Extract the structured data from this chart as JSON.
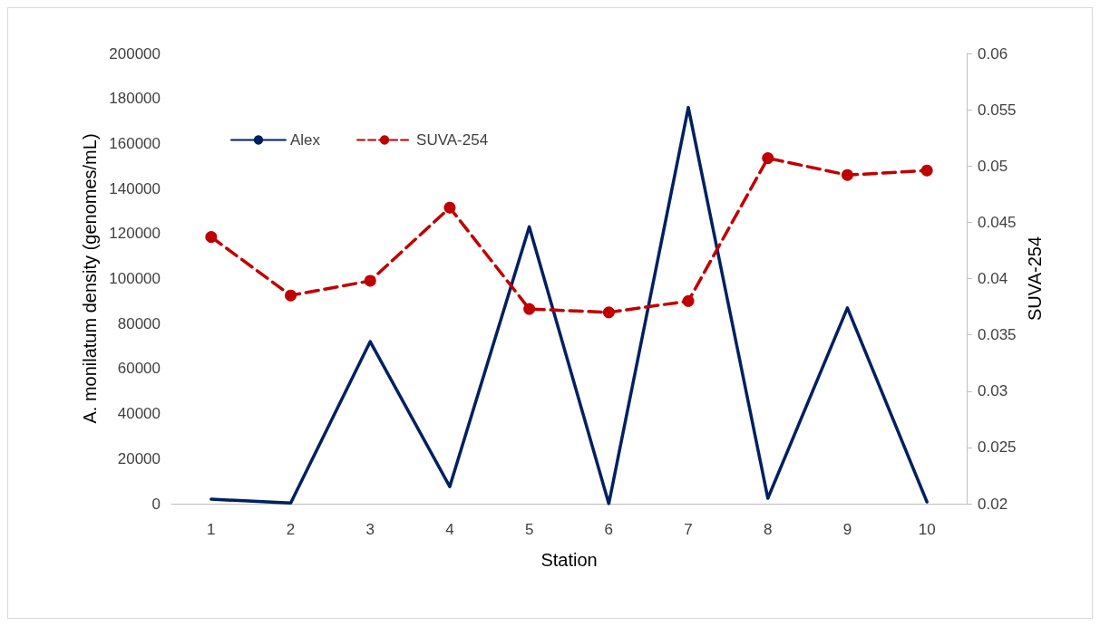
{
  "chart_data": {
    "type": "line",
    "xlabel": "Station",
    "ylabel": "A. monilatum density (genomes/mL)",
    "y2label": "SUVA-254",
    "categories": [
      "1",
      "2",
      "3",
      "4",
      "5",
      "6",
      "7",
      "8",
      "9",
      "10"
    ],
    "series": [
      {
        "name": "Alex",
        "color": "#002060",
        "marker": "none",
        "line_style": "solid",
        "values": [
          2000,
          300,
          72000,
          7600,
          123000,
          0,
          176000,
          2400,
          87000,
          800
        ]
      },
      {
        "name": "SUVA-254",
        "color": "#c00000",
        "marker": "circle",
        "line_style": "dashed",
        "axis": "y2",
        "values": [
          0.0437,
          0.0385,
          0.0398,
          0.0463,
          0.0373,
          0.037,
          0.038,
          0.0507,
          0.0492,
          0.0496
        ]
      }
    ],
    "ylim": [
      0,
      200000
    ],
    "yticks": [
      0,
      20000,
      40000,
      60000,
      80000,
      100000,
      120000,
      140000,
      160000,
      180000,
      200000
    ],
    "y2lim": [
      0.02,
      0.06
    ],
    "y2ticks": [
      0.02,
      0.025,
      0.03,
      0.035,
      0.04,
      0.045,
      0.05,
      0.055,
      0.06
    ],
    "grid": false,
    "legend": "top left"
  }
}
